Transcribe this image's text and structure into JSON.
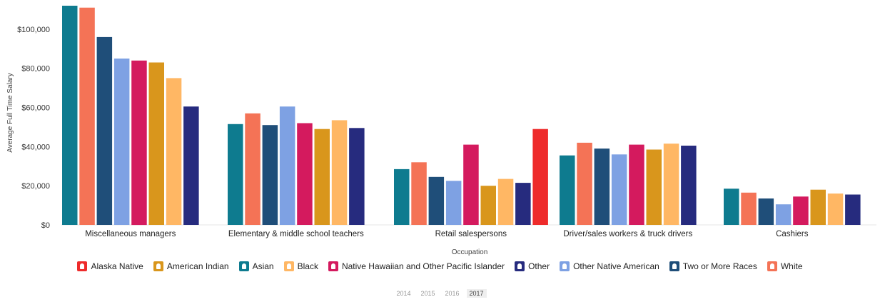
{
  "chart_data": {
    "type": "bar",
    "ylabel": "Average Full Time Salary",
    "xlabel": "Occupation",
    "ylim": [
      0,
      112000
    ],
    "yticks": [
      0,
      20000,
      40000,
      60000,
      80000,
      100000
    ],
    "ytick_labels": [
      "$0",
      "$20,000",
      "$40,000",
      "$60,000",
      "$80,000",
      "$100,000"
    ],
    "grid": false,
    "legend_position": "bottom",
    "categories": [
      {
        "name": "Miscellaneous managers",
        "bars": [
          {
            "series": "Asian",
            "value": 112000,
            "color": "#0e7b8f"
          },
          {
            "series": "White",
            "value": 111000,
            "color": "#f47356"
          },
          {
            "series": "Two or More Races",
            "value": 96000,
            "color": "#1f4e79"
          },
          {
            "series": "Other Native American",
            "value": 85000,
            "color": "#7ea1e3"
          },
          {
            "series": "Native Hawaiian and Other Pacific Islander",
            "value": 84000,
            "color": "#d41a5e"
          },
          {
            "series": "American Indian",
            "value": 83000,
            "color": "#d9961c"
          },
          {
            "series": "Black",
            "value": 75000,
            "color": "#ffb764"
          },
          {
            "series": "Other",
            "value": 60500,
            "color": "#262b7e"
          }
        ]
      },
      {
        "name": "Elementary & middle school teachers",
        "bars": [
          {
            "series": "Asian",
            "value": 51500,
            "color": "#0e7b8f"
          },
          {
            "series": "White",
            "value": 57000,
            "color": "#f47356"
          },
          {
            "series": "Two or More Races",
            "value": 51000,
            "color": "#1f4e79"
          },
          {
            "series": "Other Native American",
            "value": 60500,
            "color": "#7ea1e3"
          },
          {
            "series": "Native Hawaiian and Other Pacific Islander",
            "value": 52000,
            "color": "#d41a5e"
          },
          {
            "series": "American Indian",
            "value": 49000,
            "color": "#d9961c"
          },
          {
            "series": "Black",
            "value": 53500,
            "color": "#ffb764"
          },
          {
            "series": "Other",
            "value": 49500,
            "color": "#262b7e"
          }
        ]
      },
      {
        "name": "Retail salespersons",
        "bars": [
          {
            "series": "Asian",
            "value": 28500,
            "color": "#0e7b8f"
          },
          {
            "series": "White",
            "value": 32000,
            "color": "#f47356"
          },
          {
            "series": "Two or More Races",
            "value": 24500,
            "color": "#1f4e79"
          },
          {
            "series": "Other Native American",
            "value": 22500,
            "color": "#7ea1e3"
          },
          {
            "series": "Native Hawaiian and Other Pacific Islander",
            "value": 41000,
            "color": "#d41a5e"
          },
          {
            "series": "American Indian",
            "value": 20000,
            "color": "#d9961c"
          },
          {
            "series": "Black",
            "value": 23500,
            "color": "#ffb764"
          },
          {
            "series": "Other",
            "value": 21500,
            "color": "#262b7e"
          },
          {
            "series": "Alaska Native",
            "value": 49000,
            "color": "#ee2b2b"
          }
        ]
      },
      {
        "name": "Driver/sales workers & truck drivers",
        "bars": [
          {
            "series": "Asian",
            "value": 35500,
            "color": "#0e7b8f"
          },
          {
            "series": "White",
            "value": 42000,
            "color": "#f47356"
          },
          {
            "series": "Two or More Races",
            "value": 39000,
            "color": "#1f4e79"
          },
          {
            "series": "Other Native American",
            "value": 36000,
            "color": "#7ea1e3"
          },
          {
            "series": "Native Hawaiian and Other Pacific Islander",
            "value": 41000,
            "color": "#d41a5e"
          },
          {
            "series": "American Indian",
            "value": 38500,
            "color": "#d9961c"
          },
          {
            "series": "Black",
            "value": 41500,
            "color": "#ffb764"
          },
          {
            "series": "Other",
            "value": 40500,
            "color": "#262b7e"
          }
        ]
      },
      {
        "name": "Cashiers",
        "bars": [
          {
            "series": "Asian",
            "value": 18500,
            "color": "#0e7b8f"
          },
          {
            "series": "White",
            "value": 16500,
            "color": "#f47356"
          },
          {
            "series": "Two or More Races",
            "value": 13500,
            "color": "#1f4e79"
          },
          {
            "series": "Other Native American",
            "value": 10500,
            "color": "#7ea1e3"
          },
          {
            "series": "Native Hawaiian and Other Pacific Islander",
            "value": 14500,
            "color": "#d41a5e"
          },
          {
            "series": "American Indian",
            "value": 18000,
            "color": "#d9961c"
          },
          {
            "series": "Black",
            "value": 16000,
            "color": "#ffb764"
          },
          {
            "series": "Other",
            "value": 15500,
            "color": "#262b7e"
          }
        ]
      }
    ]
  },
  "legend": [
    {
      "label": "Alaska Native",
      "color": "#ee2b2b"
    },
    {
      "label": "American Indian",
      "color": "#d9961c"
    },
    {
      "label": "Asian",
      "color": "#0e7b8f"
    },
    {
      "label": "Black",
      "color": "#ffb764"
    },
    {
      "label": "Native Hawaiian and Other Pacific Islander",
      "color": "#d41a5e"
    },
    {
      "label": "Other",
      "color": "#262b7e"
    },
    {
      "label": "Other Native American",
      "color": "#7ea1e3"
    },
    {
      "label": "Two or More Races",
      "color": "#1f4e79"
    },
    {
      "label": "White",
      "color": "#f47356"
    }
  ],
  "years": [
    {
      "label": "2014",
      "active": false
    },
    {
      "label": "2015",
      "active": false
    },
    {
      "label": "2016",
      "active": false
    },
    {
      "label": "2017",
      "active": true
    }
  ]
}
